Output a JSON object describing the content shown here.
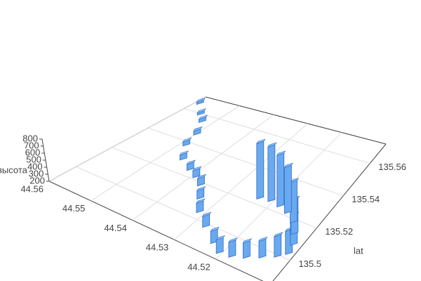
{
  "chart_data": {
    "type": "bar3d",
    "ylabel": "lat",
    "zlabel": "высота",
    "x": [
      44.5584,
      44.5547,
      44.5521,
      44.5494,
      44.5483,
      44.5452,
      44.5415,
      44.5388,
      44.5362,
      44.5335,
      44.5309,
      44.5271,
      44.5229,
      44.5203,
      44.5176,
      44.515,
      44.5123,
      44.5097,
      44.5081,
      44.5086,
      44.5102,
      44.5123,
      44.515,
      44.5176,
      44.5203,
      44.5229
    ],
    "y": [
      135.5659,
      135.559,
      135.5546,
      135.5459,
      135.5372,
      135.5285,
      135.5242,
      135.5215,
      135.5181,
      135.5111,
      135.5041,
      135.4981,
      135.492,
      135.4885,
      135.4894,
      135.492,
      135.4954,
      135.4989,
      135.5024,
      135.5076,
      135.5128,
      135.5181,
      135.5215,
      135.5233,
      135.5242,
      135.5233
    ],
    "z": [
      230,
      230,
      240,
      250,
      250,
      260,
      270,
      280,
      280,
      290,
      300,
      310,
      320,
      330,
      340,
      340,
      350,
      380,
      400,
      450,
      500,
      560,
      620,
      680,
      720,
      740
    ],
    "color": "#6aa8f0",
    "xlim": [
      44.507,
      44.56
    ],
    "ylim": [
      135.485,
      135.572
    ],
    "zlim": [
      200,
      800
    ],
    "xticks": [
      44.52,
      44.53,
      44.54,
      44.55,
      44.56
    ],
    "yticks": [
      135.5,
      135.52,
      135.54,
      135.56
    ],
    "zticks": [
      200,
      300,
      400,
      500,
      600,
      700,
      800
    ],
    "grid": true
  }
}
